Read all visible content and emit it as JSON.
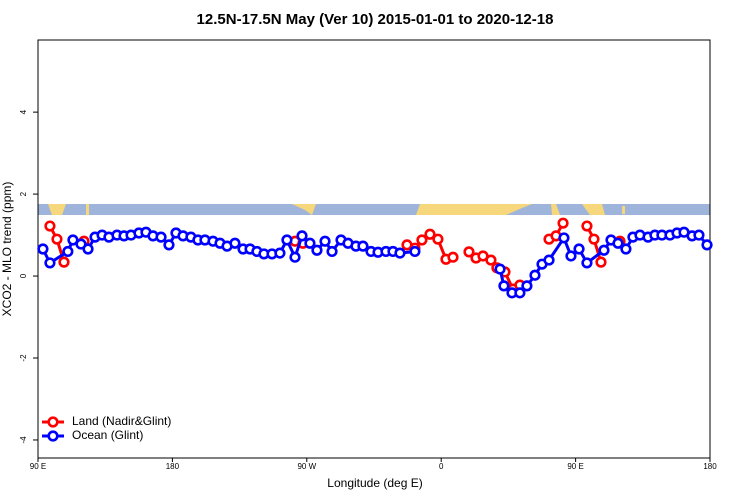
{
  "chart_data": {
    "type": "line",
    "title": "12.5N-17.5N May (Ver 10)   2015-01-01 to 2020-12-18",
    "x_label": "Longitude (deg E)",
    "y_label": "XCO2 - MLO trend (ppm)",
    "xlim": [
      90,
      540
    ],
    "ylim": [
      -4.44,
      5.76
    ],
    "xticks": [
      {
        "value": 90,
        "label": "90 E"
      },
      {
        "value": 180,
        "label": "180"
      },
      {
        "value": 270,
        "label": "90 W"
      },
      {
        "value": 360,
        "label": "0"
      },
      {
        "value": 450,
        "label": "90 E"
      },
      {
        "value": 540,
        "label": "180"
      }
    ],
    "yticks": [
      -4,
      -2,
      0,
      2,
      4
    ],
    "grid": false,
    "legend": "bottomleft",
    "series": [
      {
        "name": "Land (Nadir&Glint)",
        "color": "#ff0000",
        "x": [
          98,
          102.7,
          107.4,
          null,
          120.8,
          null,
          262.1,
          267.4,
          null,
          337.1,
          342.4,
          347.1,
          352.5,
          357.8,
          363.2,
          367.9,
          null,
          378.6,
          383.3,
          388,
          393.3,
          397.3,
          402.7,
          408,
          412.7,
          null,
          432.2,
          436.9,
          441.6,
          null,
          457.6,
          462.3,
          467,
          null,
          479.7
        ],
        "values": [
          1.22,
          0.9,
          0.34,
          null,
          0.85,
          null,
          0.85,
          0.8,
          null,
          0.76,
          0.68,
          0.88,
          1.02,
          0.9,
          0.41,
          0.46,
          null,
          0.59,
          0.44,
          0.49,
          0.39,
          0.2,
          0.1,
          -0.32,
          -0.22,
          null,
          0.9,
          0.98,
          1.29,
          null,
          1.22,
          0.9,
          0.34,
          null,
          0.85
        ]
      },
      {
        "name": "Ocean (Glint)",
        "color": "#0000ff",
        "x": [
          93.3,
          98,
          110,
          113.4,
          118.8,
          123.5,
          128.2,
          132.9,
          137.5,
          142.9,
          147.6,
          152.3,
          157.6,
          162.3,
          167,
          172.4,
          177.7,
          182.4,
          187.1,
          192.4,
          197.1,
          201.8,
          207.2,
          211.9,
          216.6,
          221.9,
          227.3,
          232,
          236.6,
          241.3,
          246.7,
          252,
          256.7,
          262.1,
          266.8,
          272.1,
          276.8,
          282.2,
          286.9,
          292.9,
          297.6,
          302.9,
          307.6,
          313,
          317.7,
          323,
          327.7,
          332.4,
          342.4,
          null,
          399.4,
          402,
          407.4,
          412.7,
          417.4,
          422.8,
          427.5,
          432.2,
          442.2,
          446.9,
          452.3,
          457.6,
          469,
          473.7,
          478.4,
          483.7,
          488.4,
          493.1,
          498.5,
          503.1,
          507.8,
          513.2,
          517.9,
          522.6,
          528,
          532.6,
          538
        ],
        "values": [
          0.66,
          0.32,
          0.6,
          0.88,
          0.78,
          0.66,
          0.95,
          1.0,
          0.95,
          1.0,
          0.98,
          1.0,
          1.05,
          1.07,
          0.98,
          0.95,
          0.76,
          1.05,
          0.98,
          0.95,
          0.88,
          0.88,
          0.85,
          0.8,
          0.73,
          0.8,
          0.66,
          0.66,
          0.6,
          0.54,
          0.54,
          0.56,
          0.88,
          0.46,
          0.98,
          0.8,
          0.63,
          0.85,
          0.6,
          0.88,
          0.8,
          0.73,
          0.73,
          0.6,
          0.58,
          0.6,
          0.6,
          0.56,
          0.6,
          null,
          0.17,
          -0.24,
          -0.41,
          -0.41,
          -0.24,
          0.02,
          0.29,
          0.39,
          0.93,
          0.49,
          0.66,
          0.32,
          0.63,
          0.88,
          0.8,
          0.66,
          0.95,
          1.0,
          0.95,
          1.0,
          1.0,
          1.0,
          1.05,
          1.07,
          0.98,
          1.0,
          0.76
        ]
      }
    ]
  }
}
